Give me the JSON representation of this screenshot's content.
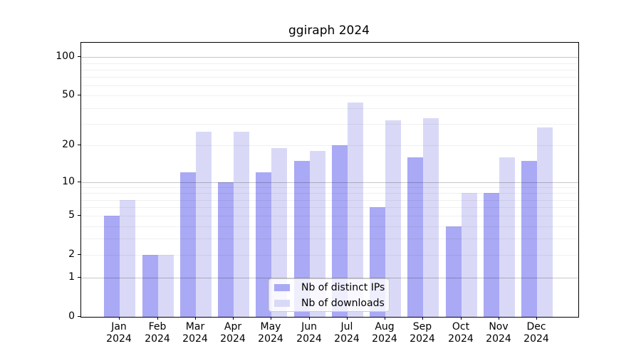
{
  "title": "ggiraph 2024",
  "colors": {
    "ips_bar": "#a9a9f5",
    "downloads_bar": "#d9d9f7",
    "grid_major": "rgba(0,0,0,0.22)",
    "grid_minor": "rgba(0,0,0,0.06)",
    "axis": "#000000",
    "legend_border": "#cccccc"
  },
  "legend": {
    "items": [
      {
        "label": "Nb of distinct IPs",
        "color_key": "ips_bar"
      },
      {
        "label": "Nb of downloads",
        "color_key": "downloads_bar"
      }
    ]
  },
  "chart_data": {
    "type": "bar",
    "title": "ggiraph 2024",
    "categories": [
      "Jan",
      "Feb",
      "Mar",
      "Apr",
      "May",
      "Jun",
      "Jul",
      "Aug",
      "Sep",
      "Oct",
      "Nov",
      "Dec"
    ],
    "category_sublabel": "2024",
    "series": [
      {
        "name": "Nb of distinct IPs",
        "color": "#a9a9f5",
        "values": [
          5,
          2,
          12,
          10,
          12,
          15,
          20,
          6,
          16,
          4,
          8,
          15
        ]
      },
      {
        "name": "Nb of downloads",
        "color": "#d9d9f7",
        "values": [
          7,
          2,
          26,
          26,
          19,
          18,
          44,
          32,
          33,
          8,
          16,
          28
        ]
      }
    ],
    "xlabel": "",
    "ylabel": "",
    "y_scale": "log1p",
    "y_tick_labels": [
      0,
      1,
      2,
      5,
      10,
      20,
      50,
      100
    ],
    "y_grid_major": [
      1,
      10,
      100
    ],
    "y_grid_minor": [
      2,
      3,
      4,
      5,
      6,
      7,
      8,
      9,
      20,
      30,
      40,
      50,
      60,
      70,
      80,
      90
    ],
    "ylim_top": 129,
    "grid": true,
    "legend_position": "lower center"
  }
}
